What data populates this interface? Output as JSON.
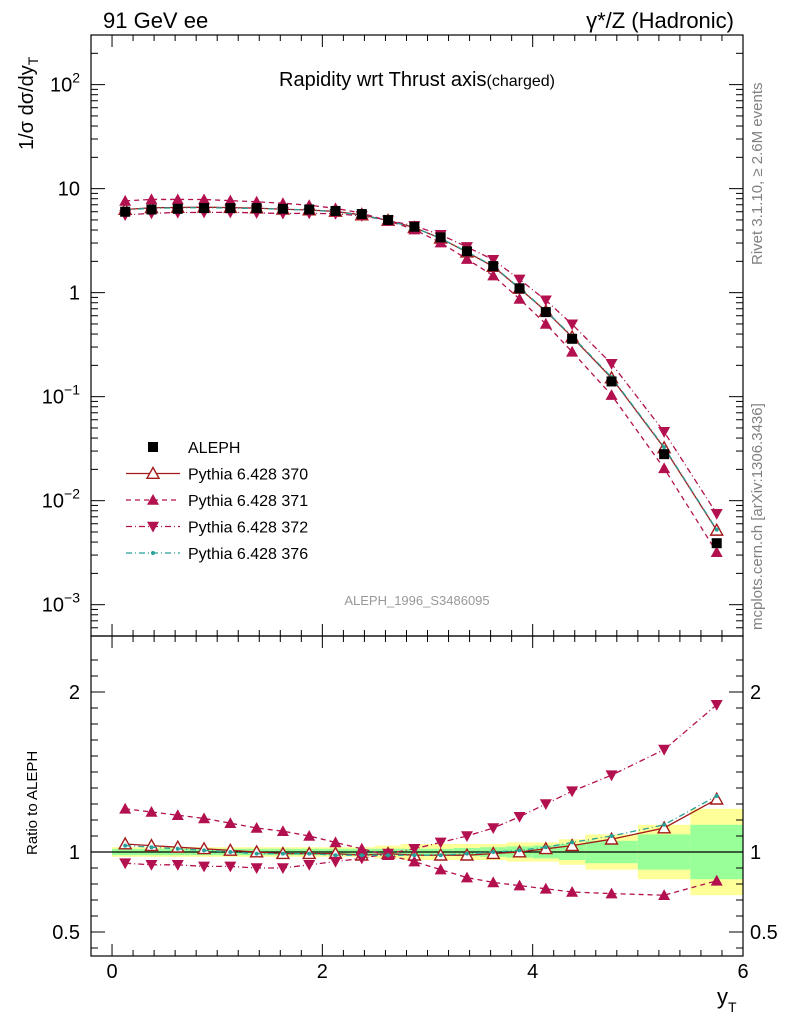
{
  "header": {
    "left": "91 GeV ee",
    "right": "γ*/Z (Hadronic)"
  },
  "side": {
    "rivet": "Rivet 3.1.10, ≥ 2.6M events",
    "source": "mcplots.cern.ch [arXiv:1306.3436]"
  },
  "chart_data": {
    "type": "line",
    "title": "Rapidity wrt Thrust axis",
    "title_suffix": "(charged)",
    "watermark": "ALEPH_1996_S3486095",
    "ylabel_main": "1/σ dσ/dy",
    "ylabel_main_sub": "T",
    "ylabel_ratio": "Ratio to ALEPH",
    "xlabel": "y",
    "xlabel_sub": "T",
    "xlim": [
      -0.2,
      6.0
    ],
    "ylim_main": [
      0.0005,
      300
    ],
    "yscale_main": "log",
    "ylim_ratio": [
      0.35,
      2.35
    ],
    "x_ticks": [
      "0",
      "2",
      "4",
      "6"
    ],
    "y_ticks_main": [
      {
        "base": "10",
        "exp": "−3",
        "value": 0.001
      },
      {
        "base": "10",
        "exp": "−2",
        "value": 0.01
      },
      {
        "base": "10",
        "exp": "−1",
        "value": 0.1
      },
      {
        "base": "1",
        "exp": "",
        "value": 1
      },
      {
        "base": "10",
        "exp": "",
        "value": 10
      },
      {
        "base": "10",
        "exp": "2",
        "value": 100
      }
    ],
    "y_ticks_ratio": [
      {
        "label": "0.5",
        "value": 0.5
      },
      {
        "label": "1",
        "value": 1
      },
      {
        "label": "2",
        "value": 2
      }
    ],
    "legend_position": "lower-left",
    "x": [
      0.125,
      0.375,
      0.625,
      0.875,
      1.125,
      1.375,
      1.625,
      1.875,
      2.125,
      2.375,
      2.625,
      2.875,
      3.125,
      3.375,
      3.625,
      3.875,
      4.125,
      4.375,
      4.75,
      5.25,
      5.75
    ],
    "data": {
      "name": "ALEPH",
      "values": [
        6.0,
        6.3,
        6.4,
        6.5,
        6.5,
        6.5,
        6.4,
        6.3,
        6.1,
        5.7,
        5.0,
        4.3,
        3.4,
        2.5,
        1.8,
        1.1,
        0.65,
        0.36,
        0.14,
        0.028,
        0.0039
      ]
    },
    "bands": {
      "x_edges": [
        0.0,
        0.25,
        0.5,
        0.75,
        1.0,
        1.25,
        1.5,
        1.75,
        2.0,
        2.25,
        2.5,
        2.75,
        3.0,
        3.25,
        3.5,
        3.75,
        4.0,
        4.25,
        4.5,
        5.0,
        5.5,
        6.0
      ],
      "stat_half": [
        0.02,
        0.02,
        0.02,
        0.02,
        0.02,
        0.02,
        0.02,
        0.02,
        0.02,
        0.02,
        0.02,
        0.02,
        0.02,
        0.025,
        0.03,
        0.035,
        0.04,
        0.05,
        0.07,
        0.11,
        0.17
      ],
      "total_half": [
        0.03,
        0.03,
        0.03,
        0.03,
        0.03,
        0.03,
        0.03,
        0.03,
        0.03,
        0.03,
        0.04,
        0.05,
        0.05,
        0.05,
        0.05,
        0.06,
        0.06,
        0.08,
        0.11,
        0.17,
        0.27
      ],
      "stat_color": "#99ff99",
      "total_color": "#ffff99"
    },
    "series": [
      {
        "name": "Pythia 6.428 370",
        "color": "#a31a1a",
        "marker": "triangle-open",
        "dash": "",
        "ratio": [
          1.05,
          1.04,
          1.03,
          1.02,
          1.01,
          1.0,
          0.99,
          0.99,
          0.99,
          0.98,
          0.99,
          0.98,
          0.98,
          0.98,
          0.99,
          1.0,
          1.02,
          1.04,
          1.08,
          1.15,
          1.33
        ]
      },
      {
        "name": "Pythia 6.428 371",
        "color": "#b3104f",
        "marker": "triangle-up",
        "dash": "5,4",
        "ratio": [
          1.27,
          1.25,
          1.23,
          1.21,
          1.18,
          1.15,
          1.13,
          1.1,
          1.06,
          1.02,
          0.98,
          0.94,
          0.89,
          0.84,
          0.81,
          0.79,
          0.77,
          0.75,
          0.74,
          0.73,
          0.82
        ]
      },
      {
        "name": "Pythia 6.428 372",
        "color": "#b3104f",
        "marker": "triangle-down",
        "dash": "6,3,1,3",
        "ratio": [
          0.93,
          0.92,
          0.92,
          0.91,
          0.91,
          0.9,
          0.9,
          0.92,
          0.94,
          0.96,
          0.99,
          1.02,
          1.06,
          1.1,
          1.15,
          1.22,
          1.3,
          1.38,
          1.48,
          1.64,
          1.92
        ]
      },
      {
        "name": "Pythia 6.428 376",
        "color": "#2aa198",
        "marker": "dot",
        "dash": "6,3,1,3",
        "ratio": [
          1.04,
          1.03,
          1.02,
          1.01,
          1.0,
          0.99,
          0.99,
          0.99,
          0.98,
          0.98,
          0.98,
          0.98,
          0.98,
          0.99,
          1.0,
          1.01,
          1.03,
          1.06,
          1.1,
          1.17,
          1.35
        ]
      }
    ]
  }
}
